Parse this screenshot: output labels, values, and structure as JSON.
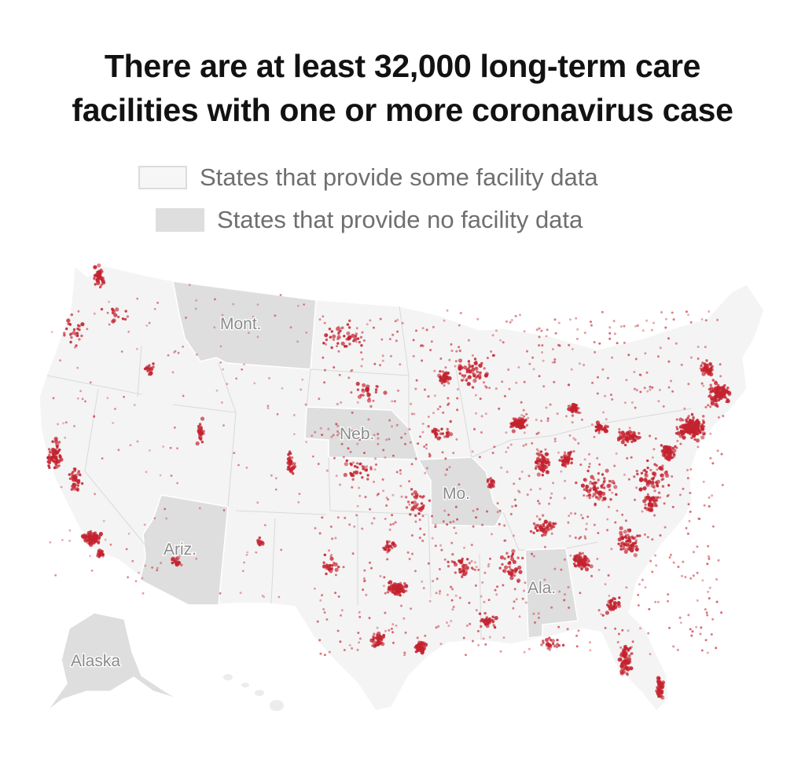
{
  "title": {
    "line1": "There are at least 32,000 long-term care",
    "line2": "facilities with one or more coronavirus case"
  },
  "legend": {
    "some_data": "States that provide some facility data",
    "no_data": "States that provide no facility data"
  },
  "colors": {
    "some_data_fill": "#f4f4f4",
    "no_data_fill": "#dedede",
    "border": "#ffffff",
    "dot": "#c4222f"
  },
  "state_labels": {
    "mont": "Mont.",
    "neb": "Neb.",
    "mo": "Mo.",
    "ariz": "Ariz.",
    "ala": "Ala.",
    "alaska": "Alaska"
  }
}
